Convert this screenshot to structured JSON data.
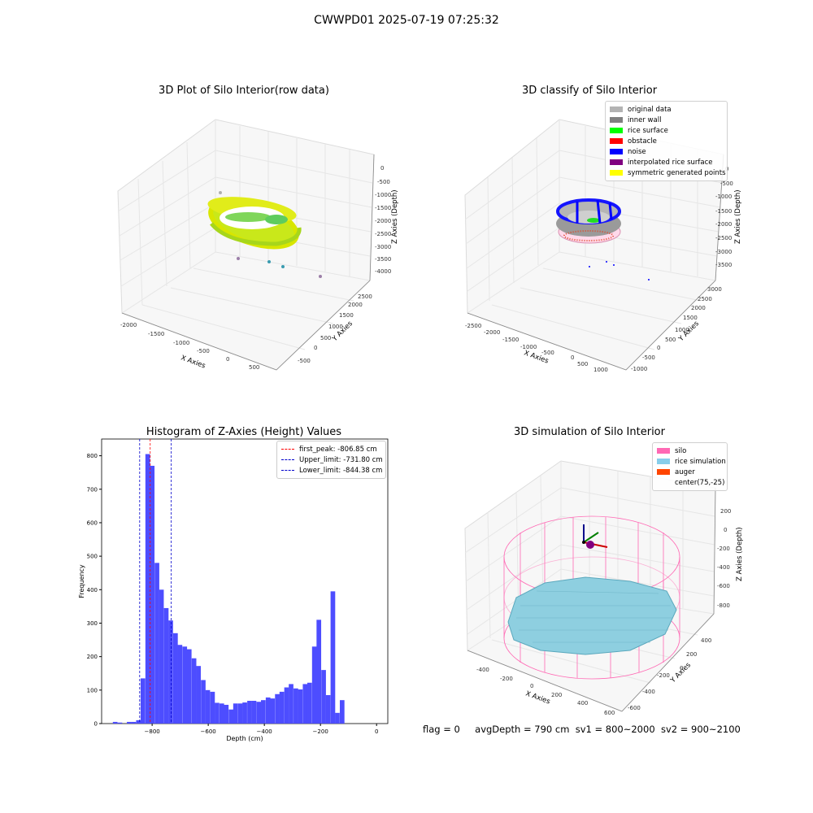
{
  "suptitle": "CWWPD01 2025-07-19 07:25:32",
  "footer": {
    "flag": "flag = 0",
    "avg_depth": "avgDepth = 790 cm",
    "sv1": "sv1 = 800~2000",
    "sv2": "sv2 = 900~2100"
  },
  "panels": {
    "raw": {
      "title": "3D Plot of Silo Interior(row data)",
      "xlabel": "X Axies",
      "ylabel": "Y Axies",
      "zlabel": "Z Axies (Depth)",
      "xticks": [
        "-2000",
        "-1500",
        "-1000",
        "-500",
        "0",
        "500"
      ],
      "yticks": [
        "-500",
        "0",
        "500",
        "1000",
        "1500",
        "2000",
        "2500"
      ],
      "zticks": [
        "0",
        "-500",
        "-1000",
        "-1500",
        "-2000",
        "-2500",
        "-3000",
        "-3500",
        "-4000"
      ]
    },
    "classify": {
      "title": "3D classify of Silo Interior",
      "xlabel": "X Axies",
      "ylabel": "Y Axies",
      "zlabel": "Z Axies (Depth)",
      "xticks": [
        "-2500",
        "-2000",
        "-1500",
        "-1000",
        "-500",
        "0",
        "500",
        "1000"
      ],
      "yticks": [
        "-1000",
        "-500",
        "0",
        "500",
        "1000",
        "1500",
        "2000",
        "2500",
        "3000"
      ],
      "zticks": [
        "0",
        "-500",
        "-1000",
        "-1500",
        "-2000",
        "-2500",
        "-3000",
        "-3500"
      ],
      "legend": [
        {
          "label": "original data",
          "color": "#b3b3b3"
        },
        {
          "label": "inner wall",
          "color": "#808080"
        },
        {
          "label": "rice surface",
          "color": "#00ff00"
        },
        {
          "label": "obstacle",
          "color": "#ff0000"
        },
        {
          "label": "noise",
          "color": "#0000ff"
        },
        {
          "label": "interpolated rice surface",
          "color": "#800080"
        },
        {
          "label": "symmetric generated points",
          "color": "#ffff00"
        }
      ]
    },
    "simulation": {
      "title": "3D simulation of Silo Interior",
      "xlabel": "X Axies",
      "ylabel": "Y Axies",
      "zlabel": "Z Axies (Depth)",
      "xticks": [
        "-400",
        "-200",
        "0",
        "200",
        "400",
        "600"
      ],
      "yticks": [
        "-600",
        "-400",
        "-200",
        "0",
        "200",
        "400"
      ],
      "zticks": [
        "200",
        "0",
        "-200",
        "-400",
        "-600",
        "-800"
      ],
      "legend": [
        {
          "label": "silo",
          "color": "#ff69b4"
        },
        {
          "label": "rice simulation",
          "color": "#87ceeb"
        },
        {
          "label": "auger",
          "color": "#ff4500"
        },
        {
          "label": "center(75,-25)",
          "color": ""
        }
      ]
    }
  },
  "chart_data": [
    {
      "type": "bar",
      "title": "Histogram of Z-Axies (Height) Values",
      "xlabel": "Depth (cm)",
      "ylabel": "Frequency",
      "xlim": [
        -980,
        40
      ],
      "ylim": [
        0,
        850
      ],
      "xticks": [
        -800,
        -600,
        -400,
        -200,
        0
      ],
      "yticks": [
        0,
        100,
        200,
        300,
        400,
        500,
        600,
        700,
        800
      ],
      "bin_width": 16.5,
      "bar_color": "#4d4dff",
      "bins": [
        {
          "x": -940,
          "v": 5
        },
        {
          "x": -923,
          "v": 3
        },
        {
          "x": -907,
          "v": 0
        },
        {
          "x": -890,
          "v": 5
        },
        {
          "x": -874,
          "v": 5
        },
        {
          "x": -857,
          "v": 10
        },
        {
          "x": -841,
          "v": 135
        },
        {
          "x": -824,
          "v": 805
        },
        {
          "x": -808,
          "v": 770
        },
        {
          "x": -791,
          "v": 480
        },
        {
          "x": -775,
          "v": 400
        },
        {
          "x": -758,
          "v": 345
        },
        {
          "x": -742,
          "v": 308
        },
        {
          "x": -725,
          "v": 270
        },
        {
          "x": -709,
          "v": 235
        },
        {
          "x": -692,
          "v": 230
        },
        {
          "x": -676,
          "v": 222
        },
        {
          "x": -659,
          "v": 195
        },
        {
          "x": -643,
          "v": 172
        },
        {
          "x": -626,
          "v": 130
        },
        {
          "x": -610,
          "v": 100
        },
        {
          "x": -593,
          "v": 95
        },
        {
          "x": -577,
          "v": 62
        },
        {
          "x": -560,
          "v": 60
        },
        {
          "x": -544,
          "v": 56
        },
        {
          "x": -527,
          "v": 42
        },
        {
          "x": -511,
          "v": 60
        },
        {
          "x": -494,
          "v": 60
        },
        {
          "x": -478,
          "v": 63
        },
        {
          "x": -461,
          "v": 68
        },
        {
          "x": -445,
          "v": 68
        },
        {
          "x": -428,
          "v": 65
        },
        {
          "x": -412,
          "v": 70
        },
        {
          "x": -395,
          "v": 78
        },
        {
          "x": -379,
          "v": 75
        },
        {
          "x": -362,
          "v": 88
        },
        {
          "x": -346,
          "v": 95
        },
        {
          "x": -329,
          "v": 108
        },
        {
          "x": -313,
          "v": 118
        },
        {
          "x": -296,
          "v": 105
        },
        {
          "x": -280,
          "v": 102
        },
        {
          "x": -263,
          "v": 118
        },
        {
          "x": -247,
          "v": 122
        },
        {
          "x": -230,
          "v": 230
        },
        {
          "x": -214,
          "v": 310
        },
        {
          "x": -197,
          "v": 160
        },
        {
          "x": -181,
          "v": 85
        },
        {
          "x": -164,
          "v": 395
        },
        {
          "x": -148,
          "v": 32
        },
        {
          "x": -131,
          "v": 70
        }
      ],
      "vlines": [
        {
          "label": "first_peak: -806.85 cm",
          "x": -806.85,
          "color": "#ff0000"
        },
        {
          "label": "Upper_limit: -731.80 cm",
          "x": -731.8,
          "color": "#0000cc"
        },
        {
          "label": "Lower_limit: -844.38 cm",
          "x": -844.38,
          "color": "#0000cc"
        }
      ]
    }
  ]
}
